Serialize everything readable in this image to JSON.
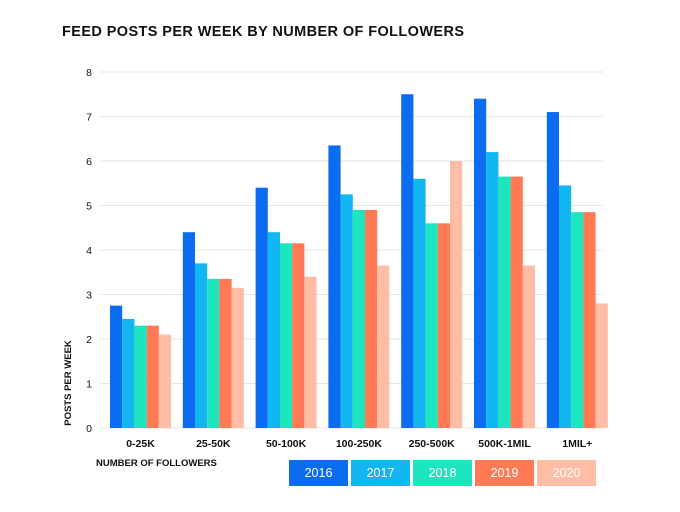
{
  "chart_data": {
    "type": "bar",
    "title": "FEED POSTS PER WEEK BY NUMBER OF FOLLOWERS",
    "xlabel": "NUMBER OF FOLLOWERS",
    "ylabel": "POSTS PER WEEK",
    "ylim": [
      0,
      8
    ],
    "yticks": [
      "0",
      "1",
      "2",
      "3",
      "4",
      "5",
      "6",
      "7",
      "8"
    ],
    "grid": true,
    "legend_position": "bottom-right",
    "categories": [
      "0-25K",
      "25-50K",
      "50-100K",
      "100-250K",
      "250-500K",
      "500K-1MIL",
      "1MIL+"
    ],
    "series": [
      {
        "name": "2016",
        "color": "#0b6cf0",
        "values": [
          2.75,
          4.4,
          5.4,
          6.35,
          7.5,
          7.4,
          7.1
        ]
      },
      {
        "name": "2017",
        "color": "#12b6f0",
        "values": [
          2.45,
          3.7,
          4.4,
          5.25,
          5.6,
          6.2,
          5.45
        ]
      },
      {
        "name": "2018",
        "color": "#1de5bd",
        "values": [
          2.3,
          3.35,
          4.15,
          4.9,
          4.6,
          5.65,
          4.85
        ]
      },
      {
        "name": "2019",
        "color": "#ff7a55",
        "values": [
          2.3,
          3.35,
          4.15,
          4.9,
          4.6,
          5.65,
          4.85
        ]
      },
      {
        "name": "2020",
        "color": "#ffbda6",
        "values": [
          2.1,
          3.15,
          3.4,
          3.65,
          6.0,
          3.65,
          2.8
        ]
      }
    ]
  }
}
